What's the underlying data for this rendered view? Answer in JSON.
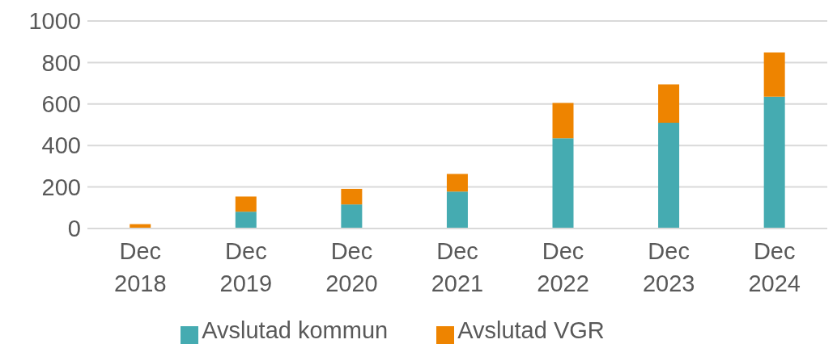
{
  "chart_data": {
    "type": "bar",
    "stacked": true,
    "categories": [
      "Dec 2018",
      "Dec 2019",
      "Dec 2020",
      "Dec 2021",
      "Dec 2022",
      "Dec 2023",
      "Dec 2024"
    ],
    "series": [
      {
        "name": "Avslutad kommun",
        "color": "#45abb1",
        "values": [
          null,
          81,
          116,
          178,
          435,
          510,
          635
        ]
      },
      {
        "name": "Avslutad VGR",
        "color": "#ee8400",
        "values": [
          21,
          73,
          75,
          85,
          170,
          185,
          213
        ]
      }
    ],
    "ylim": [
      0,
      1000
    ],
    "yticks": [
      0,
      200,
      400,
      600,
      800,
      1000
    ],
    "grid": "y",
    "legend": "bottom"
  }
}
